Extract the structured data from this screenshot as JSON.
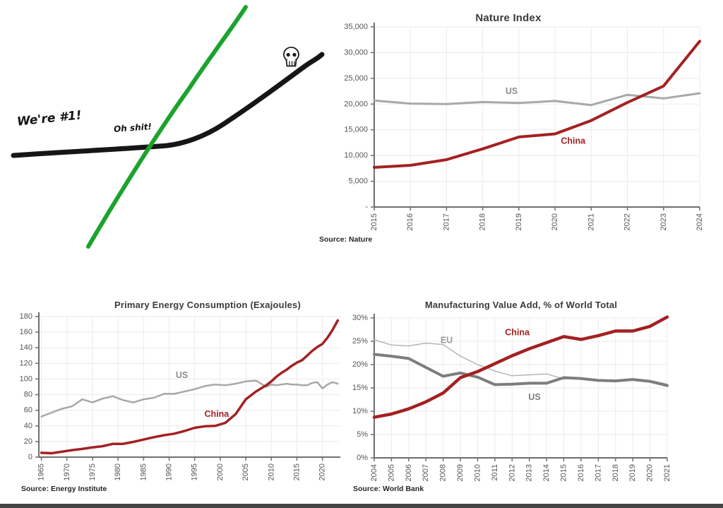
{
  "cartoon": {
    "annotation_left": "We're #1!",
    "annotation_mid": "Oh shit!",
    "black_line_color": "#161616",
    "green_line_color": "#1ca32c",
    "skull_color": "#1d1d1d"
  },
  "colors": {
    "china_red": "#a32122",
    "us_gray": "#a8a8a8",
    "us_dark_gray": "#7d7d7d",
    "eu_light_gray": "#b5b5b5",
    "grid": "#ebebeb",
    "axis": "#6e6e6e",
    "tick_text": "#555555",
    "title_text": "#3b3b3b",
    "footer_bar": "#454545"
  },
  "chart_data": [
    {
      "type": "line",
      "title": "Nature Index",
      "source": "Source: Nature",
      "xlabel": "",
      "ylabel": "",
      "xlim": [
        2015,
        2024
      ],
      "ylim": [
        0,
        35000
      ],
      "grid": true,
      "x_ticks": [
        {
          "v": 2015,
          "label": "2015"
        },
        {
          "v": 2016,
          "label": "2016"
        },
        {
          "v": 2017,
          "label": "2017"
        },
        {
          "v": 2018,
          "label": "2018"
        },
        {
          "v": 2019,
          "label": "2019"
        },
        {
          "v": 2020,
          "label": "2020"
        },
        {
          "v": 2021,
          "label": "2021"
        },
        {
          "v": 2022,
          "label": "2022"
        },
        {
          "v": 2023,
          "label": "2023"
        },
        {
          "v": 2024,
          "label": "2024"
        }
      ],
      "y_ticks": [
        {
          "v": 0,
          "label": "-"
        },
        {
          "v": 5000,
          "label": "5,000"
        },
        {
          "v": 10000,
          "label": "10,000"
        },
        {
          "v": 15000,
          "label": "15,000"
        },
        {
          "v": 20000,
          "label": "20,000"
        },
        {
          "v": 25000,
          "label": "25,000"
        },
        {
          "v": 30000,
          "label": "30,000"
        },
        {
          "v": 35000,
          "label": "35,000"
        }
      ],
      "series": [
        {
          "name": "US",
          "color": "#a8a8a8",
          "label_color": "#8d8d8d",
          "width": 3,
          "x": [
            2015,
            2016,
            2017,
            2018,
            2019,
            2020,
            2021,
            2022,
            2023,
            2024
          ],
          "values": [
            20700,
            20100,
            20000,
            20400,
            20200,
            20600,
            19800,
            21800,
            21100,
            22100
          ],
          "label_x": 2018.8,
          "label_y": 22500
        },
        {
          "name": "China",
          "color": "#a32122",
          "label_color": "#a32122",
          "width": 4,
          "x": [
            2015,
            2016,
            2017,
            2018,
            2019,
            2020,
            2021,
            2022,
            2023,
            2024
          ],
          "values": [
            7700,
            8100,
            9200,
            11300,
            13600,
            14200,
            16800,
            20300,
            23500,
            32200
          ],
          "label_x": 2020.5,
          "label_y": 12800
        }
      ]
    },
    {
      "type": "line",
      "title": "Primary Energy Consumption (Exajoules)",
      "source": "Source: Energy Institute",
      "xlabel": "",
      "ylabel": "",
      "xlim": [
        1964.5,
        2023.5
      ],
      "ylim": [
        0,
        180
      ],
      "grid": true,
      "x_ticks": [
        {
          "v": 1965,
          "label": "1965"
        },
        {
          "v": 1970,
          "label": "1970"
        },
        {
          "v": 1975,
          "label": "1975"
        },
        {
          "v": 1980,
          "label": "1980"
        },
        {
          "v": 1985,
          "label": "1985"
        },
        {
          "v": 1990,
          "label": "1990"
        },
        {
          "v": 1995,
          "label": "1995"
        },
        {
          "v": 2000,
          "label": "2000"
        },
        {
          "v": 2005,
          "label": "2005"
        },
        {
          "v": 2010,
          "label": "2010"
        },
        {
          "v": 2015,
          "label": "2015"
        },
        {
          "v": 2020,
          "label": "2020"
        }
      ],
      "y_ticks": [
        {
          "v": 0,
          "label": "0"
        },
        {
          "v": 20,
          "label": "20"
        },
        {
          "v": 40,
          "label": "40"
        },
        {
          "v": 60,
          "label": "60"
        },
        {
          "v": 80,
          "label": "80"
        },
        {
          "v": 100,
          "label": "100"
        },
        {
          "v": 120,
          "label": "120"
        },
        {
          "v": 140,
          "label": "140"
        },
        {
          "v": 160,
          "label": "160"
        },
        {
          "v": 180,
          "label": "180"
        }
      ],
      "series": [
        {
          "name": "US",
          "color": "#a8a8a8",
          "label_color": "#8d8d8d",
          "width": 2.5,
          "x": [
            1965,
            1967,
            1969,
            1971,
            1973,
            1975,
            1977,
            1979,
            1981,
            1983,
            1985,
            1987,
            1989,
            1991,
            1993,
            1995,
            1997,
            1999,
            2001,
            2003,
            2005,
            2007,
            2009,
            2010,
            2011,
            2012,
            2013,
            2014,
            2015,
            2016,
            2017,
            2018,
            2019,
            2020,
            2021,
            2022,
            2023
          ],
          "values": [
            52,
            57,
            62,
            65,
            74,
            70,
            75,
            78,
            73,
            70,
            74,
            76,
            81,
            81,
            84,
            87,
            91,
            93,
            92,
            94,
            97,
            98,
            90,
            93,
            92,
            93,
            94,
            93,
            93,
            92,
            92,
            95,
            96,
            88,
            93,
            96,
            94
          ],
          "label_x": 1992.5,
          "label_y": 105
        },
        {
          "name": "China",
          "color": "#a32122",
          "label_color": "#a32122",
          "width": 3.5,
          "x": [
            1965,
            1967,
            1969,
            1971,
            1973,
            1975,
            1977,
            1979,
            1981,
            1983,
            1985,
            1987,
            1989,
            1991,
            1993,
            1995,
            1997,
            1999,
            2001,
            2003,
            2005,
            2007,
            2009,
            2010,
            2011,
            2012,
            2013,
            2014,
            2015,
            2016,
            2017,
            2018,
            2019,
            2020,
            2021,
            2022,
            2023
          ],
          "values": [
            5.5,
            5,
            7,
            9,
            10.5,
            12.5,
            14,
            17,
            17,
            19.5,
            22.5,
            25.5,
            28,
            30,
            33.5,
            37.5,
            39.5,
            40,
            44,
            55,
            74,
            84,
            92,
            97,
            103,
            108,
            112,
            117,
            121,
            124,
            130,
            136,
            141,
            145,
            153,
            163,
            175
          ],
          "label_x": 1999.3,
          "label_y": 55
        }
      ]
    },
    {
      "type": "line",
      "title": "Manufacturing Value Add, % of World Total",
      "source": "Source: World Bank",
      "xlabel": "",
      "ylabel": "",
      "xlim": [
        2004,
        2021
      ],
      "ylim": [
        0,
        30
      ],
      "grid": true,
      "x_ticks": [
        {
          "v": 2004,
          "label": "2004"
        },
        {
          "v": 2005,
          "label": "2005"
        },
        {
          "v": 2006,
          "label": "2006"
        },
        {
          "v": 2007,
          "label": "2007"
        },
        {
          "v": 2008,
          "label": "2008"
        },
        {
          "v": 2009,
          "label": "2009"
        },
        {
          "v": 2010,
          "label": "2010"
        },
        {
          "v": 2011,
          "label": "2011"
        },
        {
          "v": 2012,
          "label": "2012"
        },
        {
          "v": 2013,
          "label": "2013"
        },
        {
          "v": 2014,
          "label": "2014"
        },
        {
          "v": 2015,
          "label": "2015"
        },
        {
          "v": 2016,
          "label": "2016"
        },
        {
          "v": 2017,
          "label": "2017"
        },
        {
          "v": 2018,
          "label": "2018"
        },
        {
          "v": 2019,
          "label": "2019"
        },
        {
          "v": 2020,
          "label": "2020"
        },
        {
          "v": 2021,
          "label": "2021"
        }
      ],
      "y_ticks": [
        {
          "v": 0,
          "label": "0%"
        },
        {
          "v": 5,
          "label": "5%"
        },
        {
          "v": 10,
          "label": "10%"
        },
        {
          "v": 15,
          "label": "15%"
        },
        {
          "v": 20,
          "label": "20%"
        },
        {
          "v": 25,
          "label": "25%"
        },
        {
          "v": 30,
          "label": "30%"
        }
      ],
      "series": [
        {
          "name": "EU",
          "color": "#b5b5b5",
          "label_color": "#9a9a9a",
          "width": 1.5,
          "x": [
            2004,
            2005,
            2006,
            2007,
            2008,
            2009,
            2010,
            2011,
            2012,
            2013,
            2014,
            2015,
            2016,
            2017,
            2018,
            2019,
            2020,
            2021
          ],
          "values": [
            25.3,
            24.2,
            24.0,
            24.6,
            24.3,
            21.8,
            20.0,
            18.6,
            17.6,
            17.8,
            18.0,
            16.9,
            17.1,
            16.7,
            16.6,
            16.9,
            16.6,
            15.8
          ],
          "label_x": 2008.2,
          "label_y": 25.2
        },
        {
          "name": "US",
          "color": "#7d7d7d",
          "label_color": "#7d7d7d",
          "width": 4,
          "x": [
            2004,
            2005,
            2006,
            2007,
            2008,
            2009,
            2010,
            2011,
            2012,
            2013,
            2014,
            2015,
            2016,
            2017,
            2018,
            2019,
            2020,
            2021
          ],
          "values": [
            22.2,
            21.8,
            21.3,
            19.4,
            17.5,
            18.2,
            17.3,
            15.7,
            15.8,
            16.0,
            16.0,
            17.2,
            17.0,
            16.6,
            16.5,
            16.8,
            16.4,
            15.5
          ],
          "label_x": 2013.3,
          "label_y": 13.0
        },
        {
          "name": "China",
          "color": "#a32122",
          "label_color": "#a32122",
          "width": 4.5,
          "x": [
            2004,
            2005,
            2006,
            2007,
            2008,
            2009,
            2010,
            2011,
            2012,
            2013,
            2014,
            2015,
            2016,
            2017,
            2018,
            2019,
            2020,
            2021
          ],
          "values": [
            8.7,
            9.4,
            10.5,
            12.0,
            13.9,
            17.2,
            18.5,
            20.2,
            21.9,
            23.4,
            24.7,
            26.0,
            25.4,
            26.2,
            27.2,
            27.2,
            28.2,
            30.2
          ],
          "label_x": 2012.3,
          "label_y": 26.9
        }
      ]
    }
  ]
}
